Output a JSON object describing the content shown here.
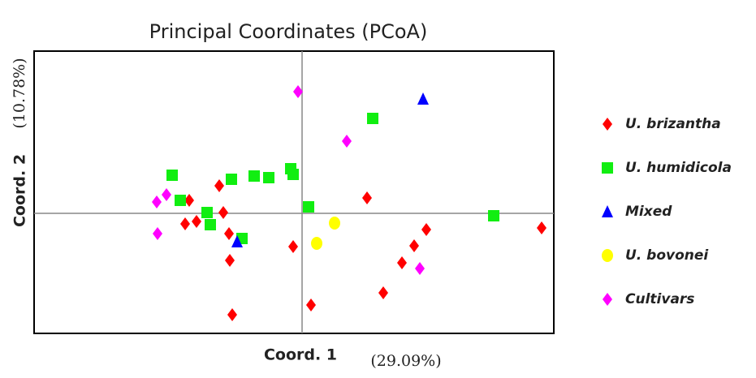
{
  "chart_data": {
    "type": "scatter",
    "title": "Principal Coordinates (PCoA)",
    "x_label": "Coord. 1",
    "x_label_pct": "(29.09%)",
    "y_label": "Coord. 2",
    "y_label_pct": "(10.78%)",
    "xlim": [
      -3.3,
      3.1
    ],
    "ylim": [
      -1.48,
      2.0
    ],
    "origin_lines": true,
    "series": [
      {
        "name": "U. brizantha",
        "color": "#ff0000",
        "marker": "diamond",
        "x": [
          -1.39,
          -1.44,
          -1.3,
          -1.02,
          -0.97,
          -0.9,
          -0.89,
          -0.86,
          -0.11,
          0.11,
          0.8,
          1.0,
          1.23,
          1.38,
          1.53,
          2.95
        ],
        "values": [
          0.16,
          -0.13,
          -0.1,
          0.34,
          0.01,
          -0.25,
          -0.58,
          -1.25,
          -0.41,
          -1.13,
          0.19,
          -0.98,
          -0.61,
          -0.4,
          -0.2,
          -0.18
        ]
      },
      {
        "name": "U. humidicola",
        "color": "#11ee11",
        "marker": "square",
        "x": [
          -1.6,
          -1.5,
          -1.17,
          -1.13,
          -0.87,
          -0.59,
          -0.41,
          -0.14,
          -0.11,
          0.08,
          -0.74,
          0.87,
          2.36
        ],
        "values": [
          0.47,
          0.16,
          0.01,
          -0.14,
          0.42,
          0.46,
          0.44,
          0.55,
          0.48,
          0.08,
          -0.31,
          1.17,
          -0.03
        ]
      },
      {
        "name": "Mixed",
        "color": "#0000ff",
        "marker": "triangle",
        "x": [
          1.49,
          -0.8
        ],
        "values": [
          1.41,
          -0.35
        ]
      },
      {
        "name": "U. bovonei",
        "color": "#ffff00",
        "marker": "circle",
        "x": [
          0.4,
          0.18
        ],
        "values": [
          -0.12,
          -0.37
        ]
      },
      {
        "name": "Cultivars",
        "color": "#ff00ff",
        "marker": "diamond",
        "x": [
          -0.05,
          0.55,
          -1.67,
          -1.79,
          -1.78,
          1.45
        ],
        "values": [
          1.5,
          0.89,
          0.23,
          0.14,
          -0.25,
          -0.68
        ]
      }
    ]
  }
}
